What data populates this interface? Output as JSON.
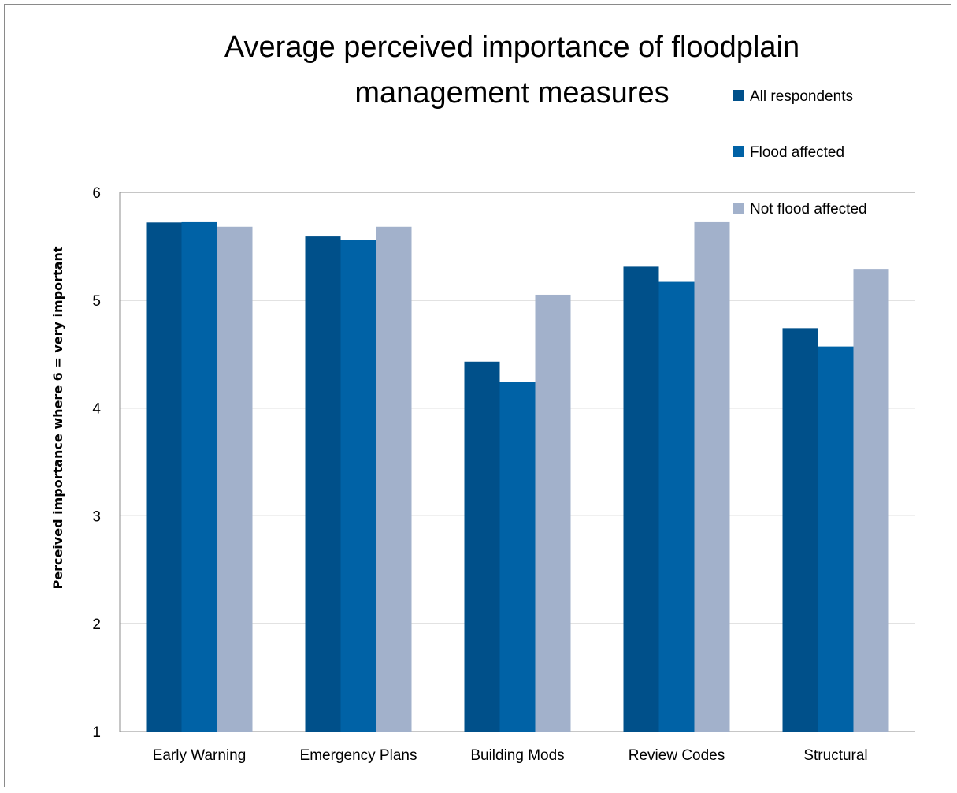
{
  "chart_data": {
    "type": "bar",
    "title_lines": [
      "Average perceived importance of floodplain",
      "management measures"
    ],
    "ylabel": "Perceived importance where 6 = very important",
    "xlabel": "",
    "ylim": [
      1,
      6
    ],
    "yticks": [
      "1",
      "2",
      "3",
      "4",
      "5",
      "6"
    ],
    "grid": true,
    "legend_position": "right",
    "categories": [
      "Early Warning",
      "Emergency Plans",
      "Building Mods",
      "Review Codes",
      "Structural"
    ],
    "series": [
      {
        "name": "All respondents",
        "color": "#00508a",
        "values": [
          5.72,
          5.59,
          4.43,
          5.31,
          4.74
        ]
      },
      {
        "name": "Flood affected",
        "color": "#0062a6",
        "values": [
          5.73,
          5.56,
          4.24,
          5.17,
          4.57
        ]
      },
      {
        "name": "Not flood affected",
        "color": "#a2b1cb",
        "values": [
          5.68,
          5.68,
          5.05,
          5.73,
          5.29
        ]
      }
    ]
  }
}
